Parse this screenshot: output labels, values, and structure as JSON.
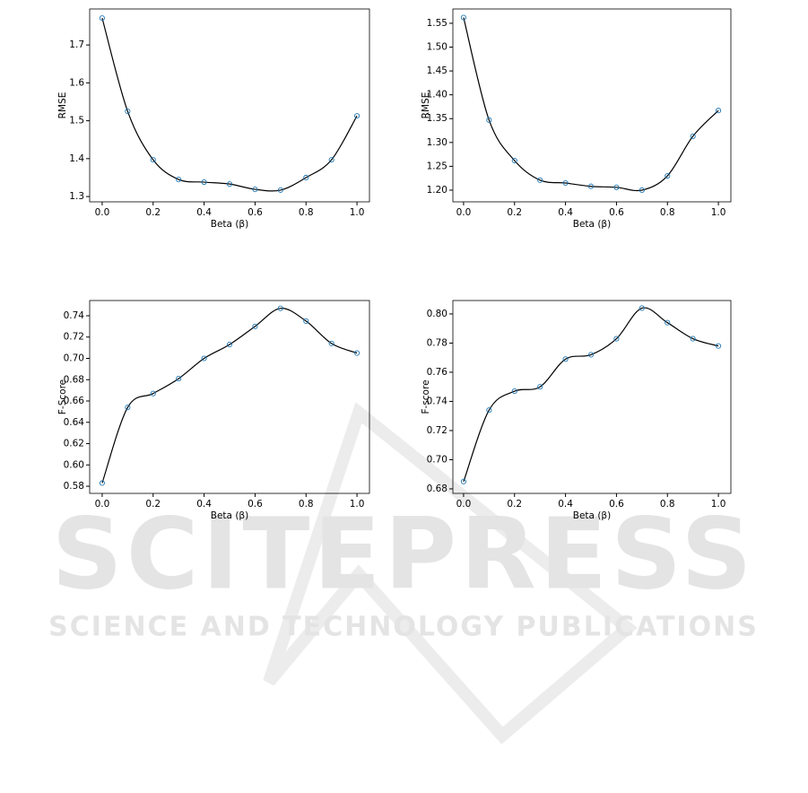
{
  "chart_data": [
    {
      "type": "line",
      "xlabel": "Beta (β)",
      "ylabel": "RMSE",
      "x": [
        0,
        0.1,
        0.2,
        0.3,
        0.4,
        0.5,
        0.6,
        0.7,
        0.8,
        0.9,
        1
      ],
      "values": [
        1.771,
        1.525,
        1.397,
        1.345,
        1.338,
        1.333,
        1.319,
        1.317,
        1.35,
        1.397,
        1.513
      ],
      "line_color": "#000000",
      "marker_color": "#1f77b4",
      "xlim": [
        -0.049,
        1.049
      ],
      "xticks": [
        {
          "value": 0,
          "label": "0.0"
        },
        0.2,
        0.4,
        0.6,
        0.8,
        {
          "value": 1,
          "label": "1.0"
        }
      ],
      "ylim": [
        1.286,
        1.795
      ],
      "yticks": [
        1.3,
        1.4,
        1.5,
        1.6,
        1.7
      ]
    },
    {
      "type": "line",
      "xlabel": "Beta (β)",
      "ylabel": "RMSE",
      "x": [
        0,
        0.1,
        0.2,
        0.3,
        0.4,
        0.5,
        0.6,
        0.7,
        0.8,
        0.9,
        1
      ],
      "values": [
        1.562,
        1.347,
        1.262,
        1.221,
        1.215,
        1.208,
        1.206,
        1.2,
        1.23,
        1.313,
        1.367
      ],
      "line_color": "#000000",
      "marker_color": "#1f77b4",
      "xlim": [
        -0.042,
        1.049
      ],
      "xticks": [
        {
          "value": 0,
          "label": "0.0"
        },
        0.2,
        0.4,
        0.6,
        0.8,
        {
          "value": 1,
          "label": "1.0"
        }
      ],
      "ylim": [
        1.1755,
        1.58
      ],
      "yticks": [
        {
          "value": 1.2,
          "label": "1.20"
        },
        1.25,
        {
          "value": 1.3,
          "label": "1.30"
        },
        1.35,
        {
          "value": 1.4,
          "label": "1.40"
        },
        1.45,
        {
          "value": 1.5,
          "label": "1.50"
        },
        1.55
      ]
    },
    {
      "type": "line",
      "xlabel": "Beta (β)",
      "ylabel": "F-Score",
      "x": [
        0,
        0.1,
        0.2,
        0.3,
        0.4,
        0.5,
        0.6,
        0.7,
        0.8,
        0.9,
        1
      ],
      "values": [
        0.583,
        0.654,
        0.667,
        0.681,
        0.7,
        0.713,
        0.73,
        0.747,
        0.735,
        0.714,
        0.705
      ],
      "line_color": "#000000",
      "marker_color": "#1f77b4",
      "xlim": [
        -0.049,
        1.049
      ],
      "xticks": [
        {
          "value": 0,
          "label": "0.0"
        },
        0.2,
        0.4,
        0.6,
        0.8,
        {
          "value": 1,
          "label": "1.0"
        }
      ],
      "ylim": [
        0.5733,
        0.7543
      ],
      "yticks": [
        0.58,
        {
          "value": 0.6,
          "label": "0.60"
        },
        0.62,
        0.64,
        0.66,
        0.68,
        {
          "value": 0.7,
          "label": "0.70"
        },
        0.72,
        0.74
      ]
    },
    {
      "type": "line",
      "xlabel": "Beta (β)",
      "ylabel": "F-score",
      "x": [
        0,
        0.1,
        0.2,
        0.3,
        0.4,
        0.5,
        0.6,
        0.7,
        0.8,
        0.9,
        1
      ],
      "values": [
        0.685,
        0.734,
        0.747,
        0.75,
        0.769,
        0.772,
        0.783,
        0.804,
        0.794,
        0.783,
        0.778
      ],
      "line_color": "#000000",
      "marker_color": "#1f77b4",
      "xlim": [
        -0.042,
        1.049
      ],
      "xticks": [
        {
          "value": 0,
          "label": "0.0"
        },
        0.2,
        0.4,
        0.6,
        0.8,
        {
          "value": 1,
          "label": "1.0"
        }
      ],
      "ylim": [
        0.6769,
        0.8092
      ],
      "yticks": [
        {
          "value": 0.68,
          "label": "0.68"
        },
        {
          "value": 0.7,
          "label": "0.70"
        },
        0.72,
        0.74,
        0.76,
        0.78,
        {
          "value": 0.8,
          "label": "0.80"
        }
      ]
    }
  ],
  "watermark": {
    "title": "SCITEPRESS",
    "subtitle": "SCIENCE AND TECHNOLOGY PUBLICATIONS"
  }
}
